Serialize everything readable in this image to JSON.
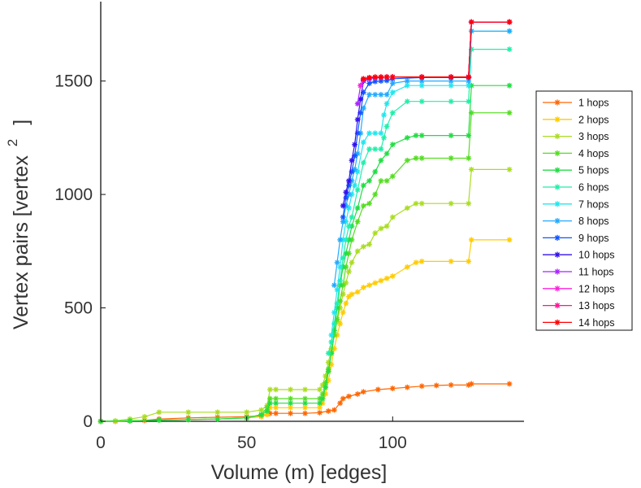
{
  "chart_data": {
    "type": "line",
    "xlabel": "Volume (m) [edges]",
    "ylabel": "Vertex pairs [vertex",
    "ylabel_superscript": "2",
    "ylabel_suffix": "]",
    "xlim": [
      0,
      145
    ],
    "ylim": [
      0,
      1850
    ],
    "x_ticks": [
      0,
      50,
      100
    ],
    "y_ticks": [
      0,
      500,
      1000,
      1500
    ],
    "x_tick_labels": [
      "0",
      "50",
      "100"
    ],
    "y_tick_labels": [
      "0",
      "500",
      "1000",
      "1500"
    ],
    "grid": false,
    "legend_position": "right",
    "marker": "asterisk",
    "series": [
      {
        "name": "14 hops",
        "color": "#ff0000",
        "x": [
          90,
          92,
          94,
          96,
          98,
          100,
          110,
          120,
          126,
          127,
          140
        ],
        "y": [
          1510,
          1515,
          1518,
          1518,
          1518,
          1518,
          1518,
          1518,
          1518,
          1760,
          1760
        ]
      },
      {
        "name": "13 hops",
        "color": "#ff1493",
        "x": [
          90,
          92,
          94,
          96,
          98,
          100,
          110,
          120,
          126,
          127,
          140
        ],
        "y": [
          1508,
          1514,
          1517,
          1517,
          1518,
          1518,
          1518,
          1518,
          1518,
          1760,
          1760
        ]
      },
      {
        "name": "12 hops",
        "color": "#ff22dd",
        "x": [
          89,
          90,
          92,
          94,
          96,
          98,
          100,
          110,
          120,
          126,
          127,
          140
        ],
        "y": [
          1480,
          1505,
          1512,
          1516,
          1517,
          1518,
          1518,
          1518,
          1518,
          1518,
          1760,
          1760
        ]
      },
      {
        "name": "11 hops",
        "color": "#aa22ff",
        "x": [
          88,
          89,
          90,
          92,
          94,
          96,
          98,
          100,
          110,
          120,
          126,
          127,
          140
        ],
        "y": [
          1400,
          1480,
          1505,
          1512,
          1515,
          1517,
          1518,
          1518,
          1518,
          1518,
          1518,
          1760,
          1760
        ]
      },
      {
        "name": "10 hops",
        "color": "#3311ee",
        "x": [
          83,
          84,
          85,
          86,
          87,
          88,
          89,
          90,
          92,
          94,
          96,
          98,
          100,
          110,
          120,
          126,
          127,
          140
        ],
        "y": [
          950,
          1010,
          1060,
          1150,
          1220,
          1330,
          1420,
          1500,
          1510,
          1514,
          1516,
          1517,
          1518,
          1518,
          1518,
          1518,
          1760,
          1760
        ]
      },
      {
        "name": "9 hops",
        "color": "#1155ff",
        "x": [
          83,
          84,
          85,
          86,
          87,
          88,
          89,
          90,
          92,
          94,
          96,
          98,
          100,
          110,
          120,
          126,
          127,
          140
        ],
        "y": [
          900,
          985,
          1040,
          1100,
          1170,
          1270,
          1360,
          1450,
          1490,
          1498,
          1500,
          1502,
          1510,
          1515,
          1515,
          1515,
          1760,
          1760
        ]
      },
      {
        "name": "8 hops",
        "color": "#22aaff",
        "x": [
          80,
          81,
          82,
          83,
          84,
          85,
          86,
          87,
          88,
          89,
          90,
          92,
          94,
          96,
          98,
          100,
          105,
          110,
          120,
          126,
          127,
          140
        ],
        "y": [
          600,
          700,
          800,
          880,
          950,
          1000,
          1060,
          1110,
          1180,
          1270,
          1380,
          1440,
          1440,
          1440,
          1440,
          1490,
          1500,
          1500,
          1500,
          1500,
          1720,
          1720
        ]
      },
      {
        "name": "7 hops",
        "color": "#22e6ee",
        "x": [
          79,
          80,
          81,
          82,
          83,
          84,
          85,
          86,
          87,
          88,
          90,
          92,
          94,
          96,
          97,
          98,
          100,
          105,
          110,
          120,
          126,
          127,
          140
        ],
        "y": [
          380,
          480,
          580,
          680,
          800,
          880,
          940,
          1000,
          1040,
          1100,
          1230,
          1270,
          1270,
          1270,
          1350,
          1400,
          1450,
          1480,
          1480,
          1480,
          1480,
          1720,
          1720
        ]
      },
      {
        "name": "6 hops",
        "color": "#22eeaa",
        "x": [
          78,
          79,
          80,
          81,
          82,
          83,
          84,
          85,
          86,
          88,
          90,
          92,
          94,
          96,
          97,
          98,
          100,
          105,
          110,
          120,
          126,
          127,
          140
        ],
        "y": [
          300,
          350,
          430,
          520,
          620,
          720,
          800,
          860,
          900,
          1020,
          1140,
          1200,
          1200,
          1200,
          1250,
          1300,
          1360,
          1410,
          1410,
          1410,
          1410,
          1640,
          1640
        ]
      },
      {
        "name": "5 hops",
        "color": "#22dd44",
        "x": [
          0,
          10,
          20,
          30,
          40,
          50,
          55,
          57,
          58,
          60,
          65,
          70,
          75,
          76,
          77,
          78,
          79,
          80,
          81,
          82,
          83,
          84,
          85,
          86,
          88,
          90,
          92,
          94,
          96,
          98,
          100,
          105,
          108,
          110,
          120,
          126,
          127,
          140
        ],
        "y": [
          0,
          2,
          5,
          8,
          10,
          15,
          28,
          45,
          80,
          80,
          80,
          80,
          80,
          100,
          150,
          220,
          300,
          400,
          500,
          600,
          680,
          740,
          800,
          860,
          940,
          1040,
          1060,
          1100,
          1150,
          1180,
          1220,
          1250,
          1260,
          1260,
          1260,
          1260,
          1480,
          1480
        ]
      },
      {
        "name": "4 hops",
        "color": "#55dd22",
        "x": [
          0,
          10,
          20,
          30,
          40,
          50,
          55,
          57,
          58,
          60,
          65,
          70,
          75,
          76,
          77,
          78,
          79,
          80,
          81,
          82,
          83,
          84,
          85,
          86,
          88,
          90,
          92,
          94,
          96,
          98,
          100,
          105,
          108,
          110,
          120,
          126,
          127,
          140
        ],
        "y": [
          0,
          2,
          5,
          8,
          10,
          15,
          30,
          60,
          100,
          100,
          100,
          100,
          100,
          120,
          170,
          230,
          300,
          380,
          450,
          530,
          600,
          680,
          740,
          800,
          880,
          950,
          960,
          1000,
          1060,
          1060,
          1080,
          1150,
          1160,
          1160,
          1160,
          1160,
          1360,
          1360
        ]
      },
      {
        "name": "3 hops",
        "color": "#aadd22",
        "x": [
          0,
          5,
          10,
          15,
          20,
          30,
          40,
          50,
          55,
          57,
          58,
          60,
          65,
          70,
          75,
          76,
          77,
          78,
          79,
          80,
          81,
          82,
          83,
          84,
          85,
          86,
          88,
          90,
          92,
          94,
          96,
          98,
          100,
          105,
          108,
          110,
          120,
          126,
          127,
          140
        ],
        "y": [
          0,
          2,
          10,
          20,
          40,
          40,
          40,
          40,
          50,
          70,
          140,
          140,
          140,
          140,
          140,
          160,
          200,
          260,
          320,
          380,
          440,
          500,
          560,
          610,
          660,
          700,
          750,
          770,
          780,
          830,
          850,
          860,
          900,
          940,
          960,
          960,
          960,
          960,
          1110,
          1110
        ]
      },
      {
        "name": "2 hops",
        "color": "#ffcc00",
        "x": [
          0,
          10,
          20,
          30,
          40,
          50,
          55,
          57,
          58,
          60,
          65,
          70,
          75,
          76,
          77,
          78,
          79,
          80,
          81,
          82,
          83,
          84,
          85,
          86,
          88,
          90,
          92,
          94,
          96,
          98,
          100,
          105,
          108,
          110,
          120,
          126,
          127,
          140
        ],
        "y": [
          0,
          2,
          5,
          8,
          10,
          15,
          20,
          30,
          60,
          60,
          60,
          60,
          60,
          80,
          120,
          180,
          250,
          320,
          380,
          430,
          480,
          520,
          550,
          560,
          570,
          590,
          600,
          610,
          620,
          630,
          640,
          680,
          700,
          705,
          705,
          705,
          800,
          800
        ]
      },
      {
        "name": "1 hops",
        "color": "#ff6600",
        "x": [
          0,
          5,
          10,
          15,
          20,
          30,
          40,
          50,
          55,
          57,
          58,
          60,
          65,
          70,
          75,
          78,
          80,
          82,
          83,
          85,
          88,
          90,
          95,
          100,
          105,
          110,
          115,
          120,
          126,
          127,
          140
        ],
        "y": [
          0,
          0,
          2,
          4,
          10,
          15,
          18,
          20,
          25,
          30,
          35,
          35,
          35,
          35,
          38,
          45,
          50,
          80,
          100,
          110,
          120,
          130,
          140,
          145,
          150,
          155,
          158,
          160,
          160,
          165,
          165
        ]
      }
    ]
  }
}
